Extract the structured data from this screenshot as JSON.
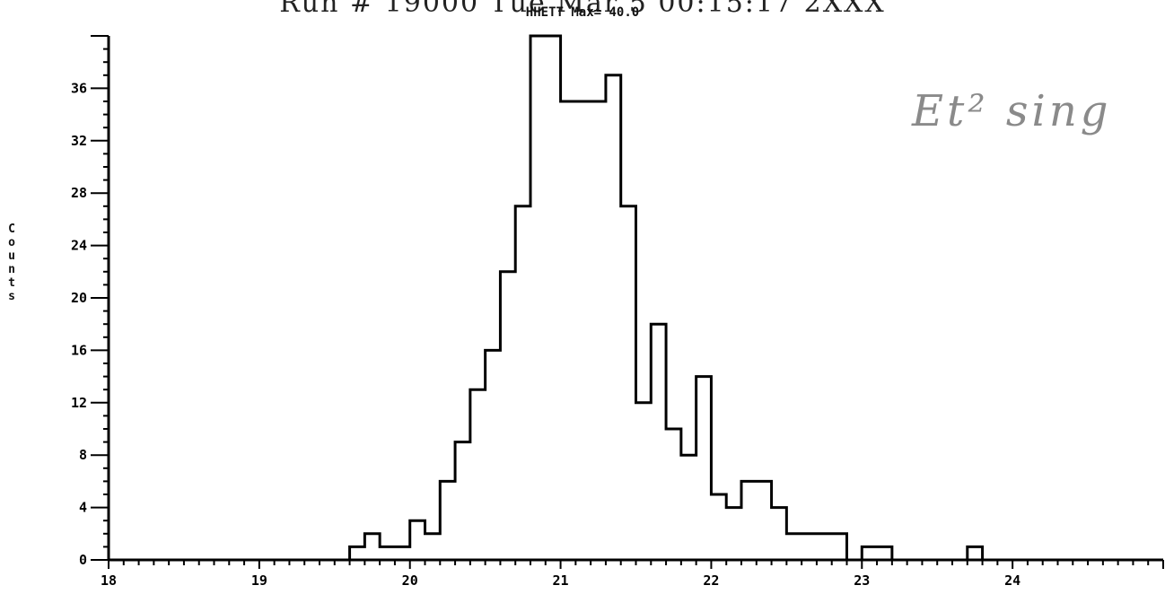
{
  "header": {
    "top_text": "Run #   19000       Tue Mar  5 00:15:17 2XXX",
    "title": "HHETT Max=     40.0"
  },
  "annotation": "Et²  sing",
  "chart_data": {
    "type": "bar",
    "title": "HHETT Max=     40.0",
    "xlabel": "",
    "ylabel": "Counts",
    "xlim": [
      18,
      25
    ],
    "ylim": [
      0,
      40
    ],
    "bin_width": 0.1,
    "x_ticks": [
      18,
      19,
      20,
      21,
      22,
      23,
      24
    ],
    "y_ticks": [
      0,
      4,
      8,
      12,
      16,
      20,
      24,
      28,
      32,
      36
    ],
    "x": [
      19.6,
      19.7,
      19.8,
      19.9,
      20.0,
      20.1,
      20.2,
      20.3,
      20.4,
      20.5,
      20.6,
      20.7,
      20.8,
      20.9,
      21.0,
      21.1,
      21.2,
      21.3,
      21.4,
      21.5,
      21.6,
      21.7,
      21.8,
      21.9,
      22.0,
      22.1,
      22.2,
      22.3,
      22.4,
      22.5,
      22.6,
      22.7,
      22.8,
      22.9,
      23.0,
      23.1,
      23.2,
      23.3,
      23.4,
      23.5,
      23.6,
      23.7,
      23.8
    ],
    "values": [
      1,
      2,
      1,
      1,
      3,
      2,
      6,
      9,
      13,
      16,
      22,
      27,
      40,
      40,
      35,
      35,
      35,
      37,
      27,
      12,
      18,
      10,
      8,
      14,
      5,
      4,
      6,
      6,
      4,
      2,
      2,
      2,
      2,
      0,
      1,
      1,
      0,
      0,
      0,
      0,
      0,
      1,
      0
    ],
    "grid": false,
    "legend": "none"
  }
}
